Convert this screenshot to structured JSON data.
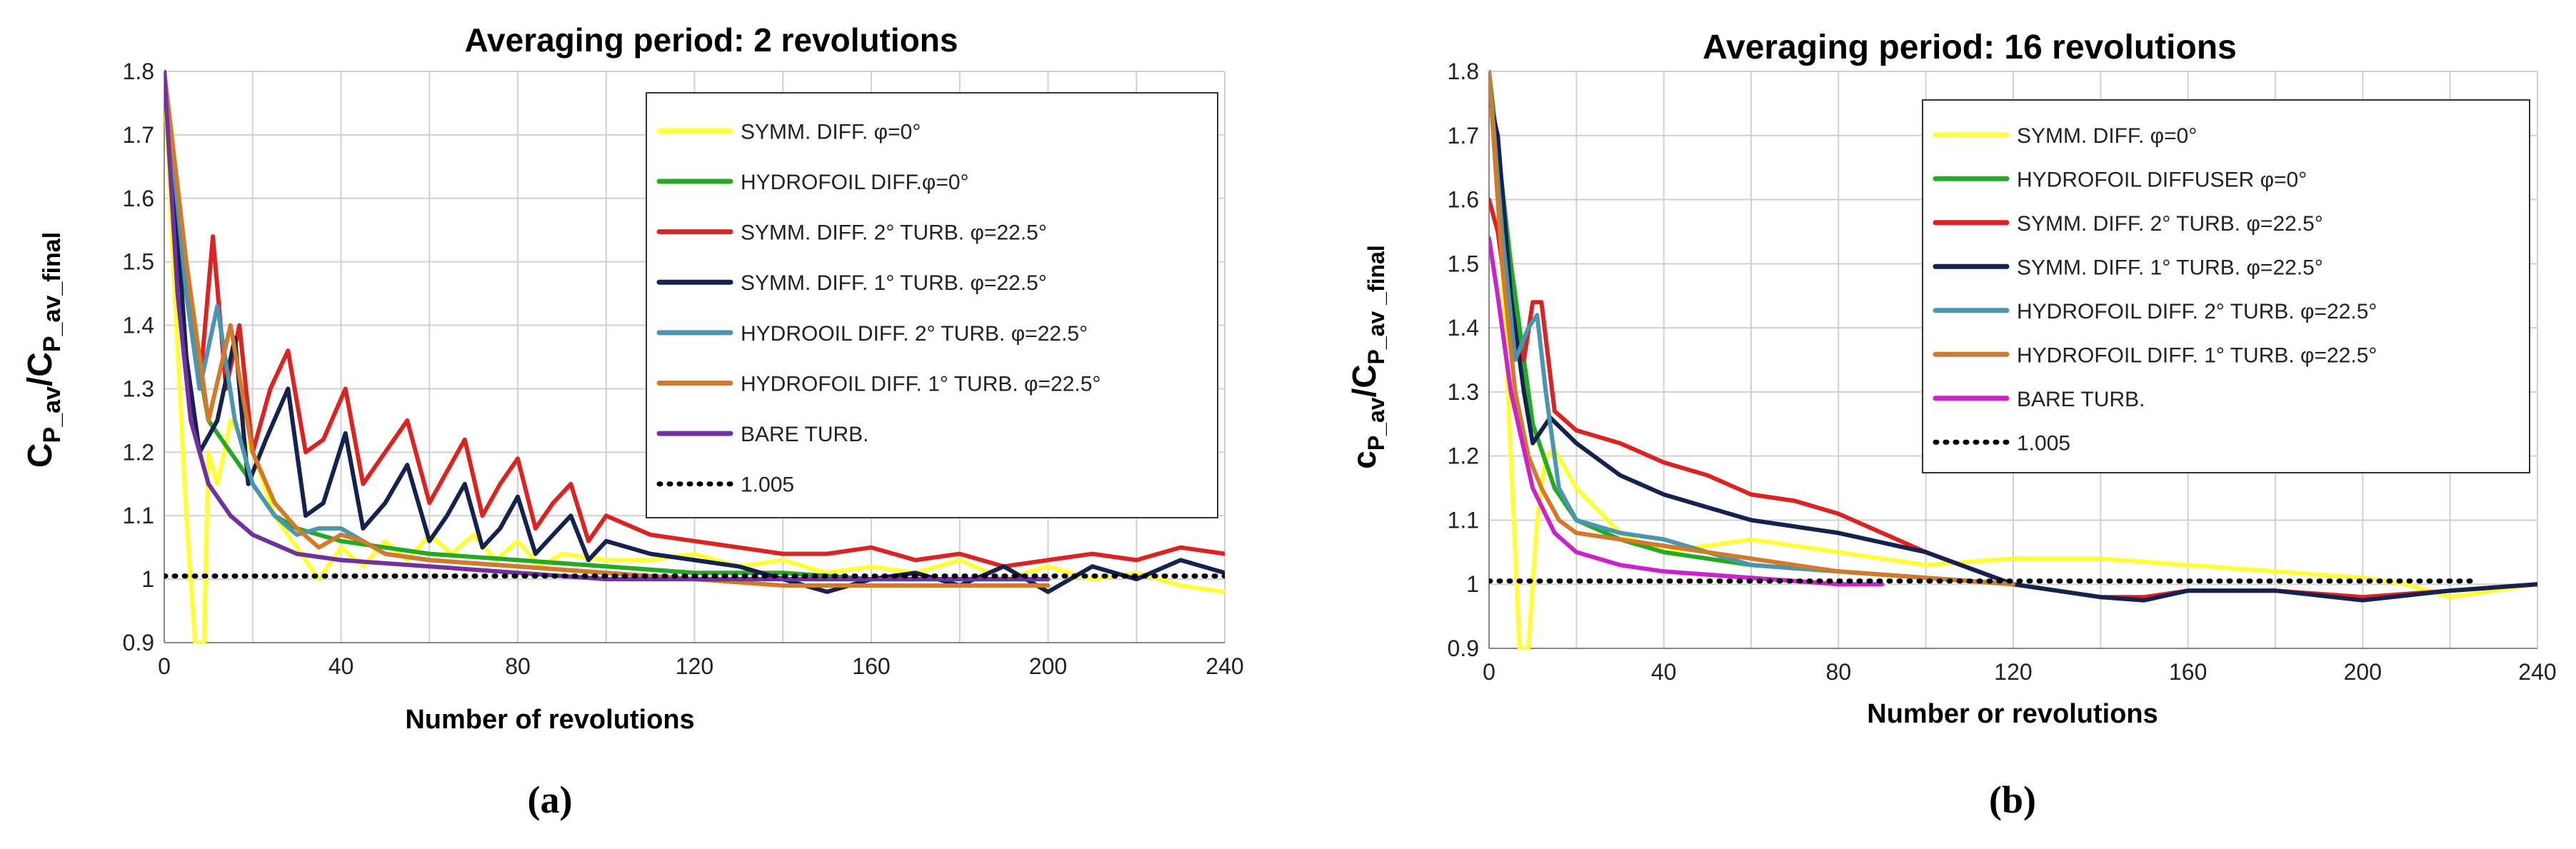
{
  "panels": [
    {
      "label": "(a)"
    },
    {
      "label": "(b)"
    }
  ],
  "chart_data": [
    {
      "type": "line",
      "title": "Averaging period: 2 revolutions",
      "xlabel": "Number of revolutions",
      "ylabel": "C_P_av/C_P_av_final",
      "xlim": [
        0,
        240
      ],
      "ylim": [
        0.9,
        1.8
      ],
      "xticks": [
        0,
        40,
        80,
        120,
        160,
        200,
        240
      ],
      "yticks": [
        0.9,
        1,
        1.1,
        1.2,
        1.3,
        1.4,
        1.5,
        1.6,
        1.7,
        1.8
      ],
      "grid": true,
      "legend_position": "top-right",
      "series": [
        {
          "name": "SYMM.  DIFF. φ=0°",
          "color": "#ffff33",
          "dash": "solid",
          "x": [
            0,
            2,
            5,
            7,
            9,
            10,
            12,
            15,
            20,
            25,
            30,
            35,
            40,
            45,
            50,
            55,
            60,
            65,
            70,
            75,
            80,
            85,
            90,
            100,
            110,
            120,
            130,
            140,
            150,
            160,
            170,
            180,
            190,
            200,
            210,
            220,
            230,
            240
          ],
          "y": [
            1.8,
            1.5,
            1.1,
            0.9,
            0.9,
            1.2,
            1.15,
            1.25,
            1.2,
            1.1,
            1.05,
            1.0,
            1.05,
            1.02,
            1.06,
            1.03,
            1.07,
            1.04,
            1.07,
            1.03,
            1.06,
            1.02,
            1.04,
            1.03,
            1.03,
            1.04,
            1.02,
            1.03,
            1.01,
            1.02,
            1.01,
            1.03,
            1.0,
            1.02,
            1.0,
            1.01,
            0.99,
            0.98
          ]
        },
        {
          "name": "HYDROFOIL  DIFF.φ=0°",
          "color": "#22aa22",
          "dash": "solid",
          "x": [
            0,
            5,
            10,
            15,
            20,
            25,
            30,
            40,
            50,
            60,
            80,
            100,
            120,
            140,
            160,
            180,
            200
          ],
          "y": [
            1.8,
            1.45,
            1.25,
            1.2,
            1.15,
            1.1,
            1.08,
            1.06,
            1.05,
            1.04,
            1.03,
            1.02,
            1.01,
            1.01,
            1.0,
            1.0,
            1.0
          ]
        },
        {
          "name": "SYMM.  DIFF. 2° TURB. φ=22.5°",
          "color": "#dd2222",
          "dash": "solid",
          "x": [
            0,
            5,
            8,
            11,
            14,
            17,
            20,
            24,
            28,
            32,
            36,
            41,
            45,
            50,
            55,
            60,
            64,
            68,
            72,
            76,
            80,
            84,
            88,
            92,
            96,
            100,
            110,
            120,
            130,
            140,
            150,
            160,
            170,
            180,
            190,
            200,
            210,
            220,
            230,
            240
          ],
          "y": [
            1.8,
            1.45,
            1.3,
            1.54,
            1.3,
            1.4,
            1.2,
            1.3,
            1.36,
            1.2,
            1.22,
            1.3,
            1.15,
            1.2,
            1.25,
            1.12,
            1.17,
            1.22,
            1.1,
            1.15,
            1.19,
            1.08,
            1.12,
            1.15,
            1.06,
            1.1,
            1.07,
            1.06,
            1.05,
            1.04,
            1.04,
            1.05,
            1.03,
            1.04,
            1.02,
            1.03,
            1.04,
            1.03,
            1.05,
            1.04
          ]
        },
        {
          "name": "SYMM.  DIFF. 1° TURB. φ=22.5°",
          "color": "#142250",
          "dash": "solid",
          "x": [
            0,
            3,
            5,
            8,
            12,
            16,
            19,
            23,
            28,
            32,
            36,
            41,
            45,
            50,
            55,
            60,
            64,
            68,
            72,
            76,
            80,
            84,
            88,
            92,
            96,
            100,
            110,
            120,
            130,
            140,
            150,
            160,
            170,
            180,
            190,
            200,
            210,
            220,
            230,
            240
          ],
          "y": [
            1.8,
            1.55,
            1.35,
            1.2,
            1.25,
            1.38,
            1.15,
            1.22,
            1.3,
            1.1,
            1.12,
            1.23,
            1.08,
            1.12,
            1.18,
            1.06,
            1.1,
            1.15,
            1.05,
            1.08,
            1.13,
            1.04,
            1.07,
            1.1,
            1.03,
            1.06,
            1.04,
            1.03,
            1.02,
            1.0,
            0.98,
            1.0,
            1.01,
            0.99,
            1.02,
            0.98,
            1.02,
            1.0,
            1.03,
            1.01
          ]
        },
        {
          "name": "HYDROOIL  DIFF. 2° TURB. φ=22.5°",
          "color": "#4a95b0",
          "dash": "solid",
          "x": [
            0,
            5,
            8,
            12,
            16,
            20,
            25,
            30,
            35,
            40,
            45,
            50,
            60,
            80,
            100,
            120,
            140,
            160,
            180,
            200
          ],
          "y": [
            1.8,
            1.45,
            1.3,
            1.43,
            1.25,
            1.15,
            1.1,
            1.07,
            1.08,
            1.08,
            1.06,
            1.04,
            1.03,
            1.02,
            1.01,
            1.0,
            1.0,
            1.0,
            1.0,
            1.0
          ]
        },
        {
          "name": "HYDROFOIL  DIFF. 1° TURB. φ=22.5°",
          "color": "#d27a2a",
          "dash": "solid",
          "x": [
            0,
            5,
            10,
            15,
            20,
            25,
            30,
            35,
            40,
            45,
            50,
            60,
            80,
            100,
            120,
            140,
            160,
            180,
            200
          ],
          "y": [
            1.8,
            1.5,
            1.25,
            1.4,
            1.2,
            1.12,
            1.08,
            1.05,
            1.07,
            1.06,
            1.04,
            1.03,
            1.02,
            1.01,
            1.0,
            0.99,
            0.99,
            0.99,
            0.99
          ]
        },
        {
          "name": "BARE TURB.",
          "color": "#7030a0",
          "dash": "solid",
          "x": [
            0,
            3,
            6,
            10,
            15,
            20,
            30,
            40,
            60,
            80,
            100,
            120,
            140,
            160,
            180,
            200
          ],
          "y": [
            1.8,
            1.45,
            1.25,
            1.15,
            1.1,
            1.07,
            1.04,
            1.03,
            1.02,
            1.01,
            1.0,
            1.0,
            1.0,
            1.0,
            1.0,
            1.0
          ]
        },
        {
          "name": "1.005",
          "color": "#000000",
          "dash": "dotted",
          "x": [
            0,
            240
          ],
          "y": [
            1.005,
            1.005
          ]
        }
      ]
    },
    {
      "type": "line",
      "title": "Averaging period: 16 revolutions",
      "xlabel": "Number or revolutions",
      "ylabel": "c_P_av/C_P_av_final",
      "xlim": [
        0,
        240
      ],
      "ylim": [
        0.9,
        1.8
      ],
      "xticks": [
        0,
        40,
        80,
        120,
        160,
        200,
        240
      ],
      "yticks": [
        0.9,
        1,
        1.1,
        1.2,
        1.3,
        1.4,
        1.5,
        1.6,
        1.7,
        1.8
      ],
      "grid": true,
      "legend_position": "top-right",
      "series": [
        {
          "name": "SYMM.  DIFF.  φ=0°",
          "color": "#ffff33",
          "dash": "solid",
          "x": [
            0,
            3,
            5,
            7,
            9,
            11,
            13,
            15,
            20,
            30,
            40,
            60,
            80,
            100,
            120,
            140,
            160,
            180,
            200,
            210,
            220,
            230,
            240
          ],
          "y": [
            1.8,
            1.5,
            1.2,
            0.9,
            0.9,
            1.1,
            1.2,
            1.21,
            1.15,
            1.08,
            1.05,
            1.07,
            1.05,
            1.03,
            1.04,
            1.04,
            1.03,
            1.02,
            1.01,
            1.0,
            0.98,
            0.99,
            1.0
          ]
        },
        {
          "name": "HYDROFOIL  DIFFUSER  φ=0°",
          "color": "#22aa22",
          "dash": "solid",
          "x": [
            0,
            5,
            10,
            15,
            20,
            30,
            40,
            60,
            80,
            100,
            120
          ],
          "y": [
            1.8,
            1.5,
            1.25,
            1.15,
            1.1,
            1.07,
            1.05,
            1.03,
            1.02,
            1.01,
            1.0
          ]
        },
        {
          "name": "SYMM.  DIFF. 2° TURB.  φ=22.5°",
          "color": "#dd2222",
          "dash": "solid",
          "x": [
            0,
            2,
            5,
            8,
            10,
            12,
            15,
            20,
            30,
            40,
            50,
            60,
            70,
            80,
            100,
            120,
            140,
            150,
            160,
            180,
            200,
            220,
            240
          ],
          "y": [
            1.6,
            1.55,
            1.4,
            1.35,
            1.44,
            1.44,
            1.27,
            1.24,
            1.22,
            1.19,
            1.17,
            1.14,
            1.13,
            1.11,
            1.05,
            1.0,
            0.98,
            0.98,
            0.99,
            0.99,
            0.98,
            0.99,
            1.0
          ]
        },
        {
          "name": "SYMM.  DIFF. 1° TURB.  φ=22.5°",
          "color": "#142250",
          "dash": "solid",
          "x": [
            0,
            2,
            5,
            8,
            10,
            14,
            20,
            30,
            40,
            50,
            60,
            70,
            80,
            100,
            120,
            140,
            150,
            160,
            180,
            200,
            220,
            240
          ],
          "y": [
            1.76,
            1.7,
            1.45,
            1.3,
            1.22,
            1.26,
            1.22,
            1.17,
            1.14,
            1.12,
            1.1,
            1.09,
            1.08,
            1.05,
            1.0,
            0.98,
            0.975,
            0.99,
            0.99,
            0.975,
            0.99,
            1.0
          ]
        },
        {
          "name": "HYDROFOIL  DIFF. 2° TURB.  φ=22.5°",
          "color": "#4a95b0",
          "dash": "solid",
          "x": [
            0,
            3,
            6,
            9,
            11,
            13,
            16,
            20,
            30,
            40,
            50,
            60,
            80,
            100,
            120
          ],
          "y": [
            1.8,
            1.55,
            1.35,
            1.4,
            1.42,
            1.3,
            1.15,
            1.1,
            1.08,
            1.07,
            1.05,
            1.03,
            1.02,
            1.01,
            1.0
          ]
        },
        {
          "name": "HYDROFOIL  DIFF. 1° TURB.  φ=22.5°",
          "color": "#d27a2a",
          "dash": "solid",
          "x": [
            0,
            3,
            6,
            9,
            12,
            16,
            20,
            30,
            40,
            60,
            80,
            100,
            120
          ],
          "y": [
            1.8,
            1.5,
            1.3,
            1.2,
            1.15,
            1.1,
            1.08,
            1.07,
            1.06,
            1.04,
            1.02,
            1.01,
            1.0
          ]
        },
        {
          "name": "BARE TURB.",
          "color": "#cc22cc",
          "dash": "solid",
          "x": [
            0,
            2,
            5,
            10,
            15,
            20,
            30,
            40,
            60,
            80,
            90
          ],
          "y": [
            1.54,
            1.45,
            1.3,
            1.15,
            1.08,
            1.05,
            1.03,
            1.02,
            1.01,
            1.0,
            1.0
          ]
        },
        {
          "name": "1.005",
          "color": "#000000",
          "dash": "dotted",
          "x": [
            0,
            225
          ],
          "y": [
            1.005,
            1.005
          ]
        }
      ]
    }
  ]
}
